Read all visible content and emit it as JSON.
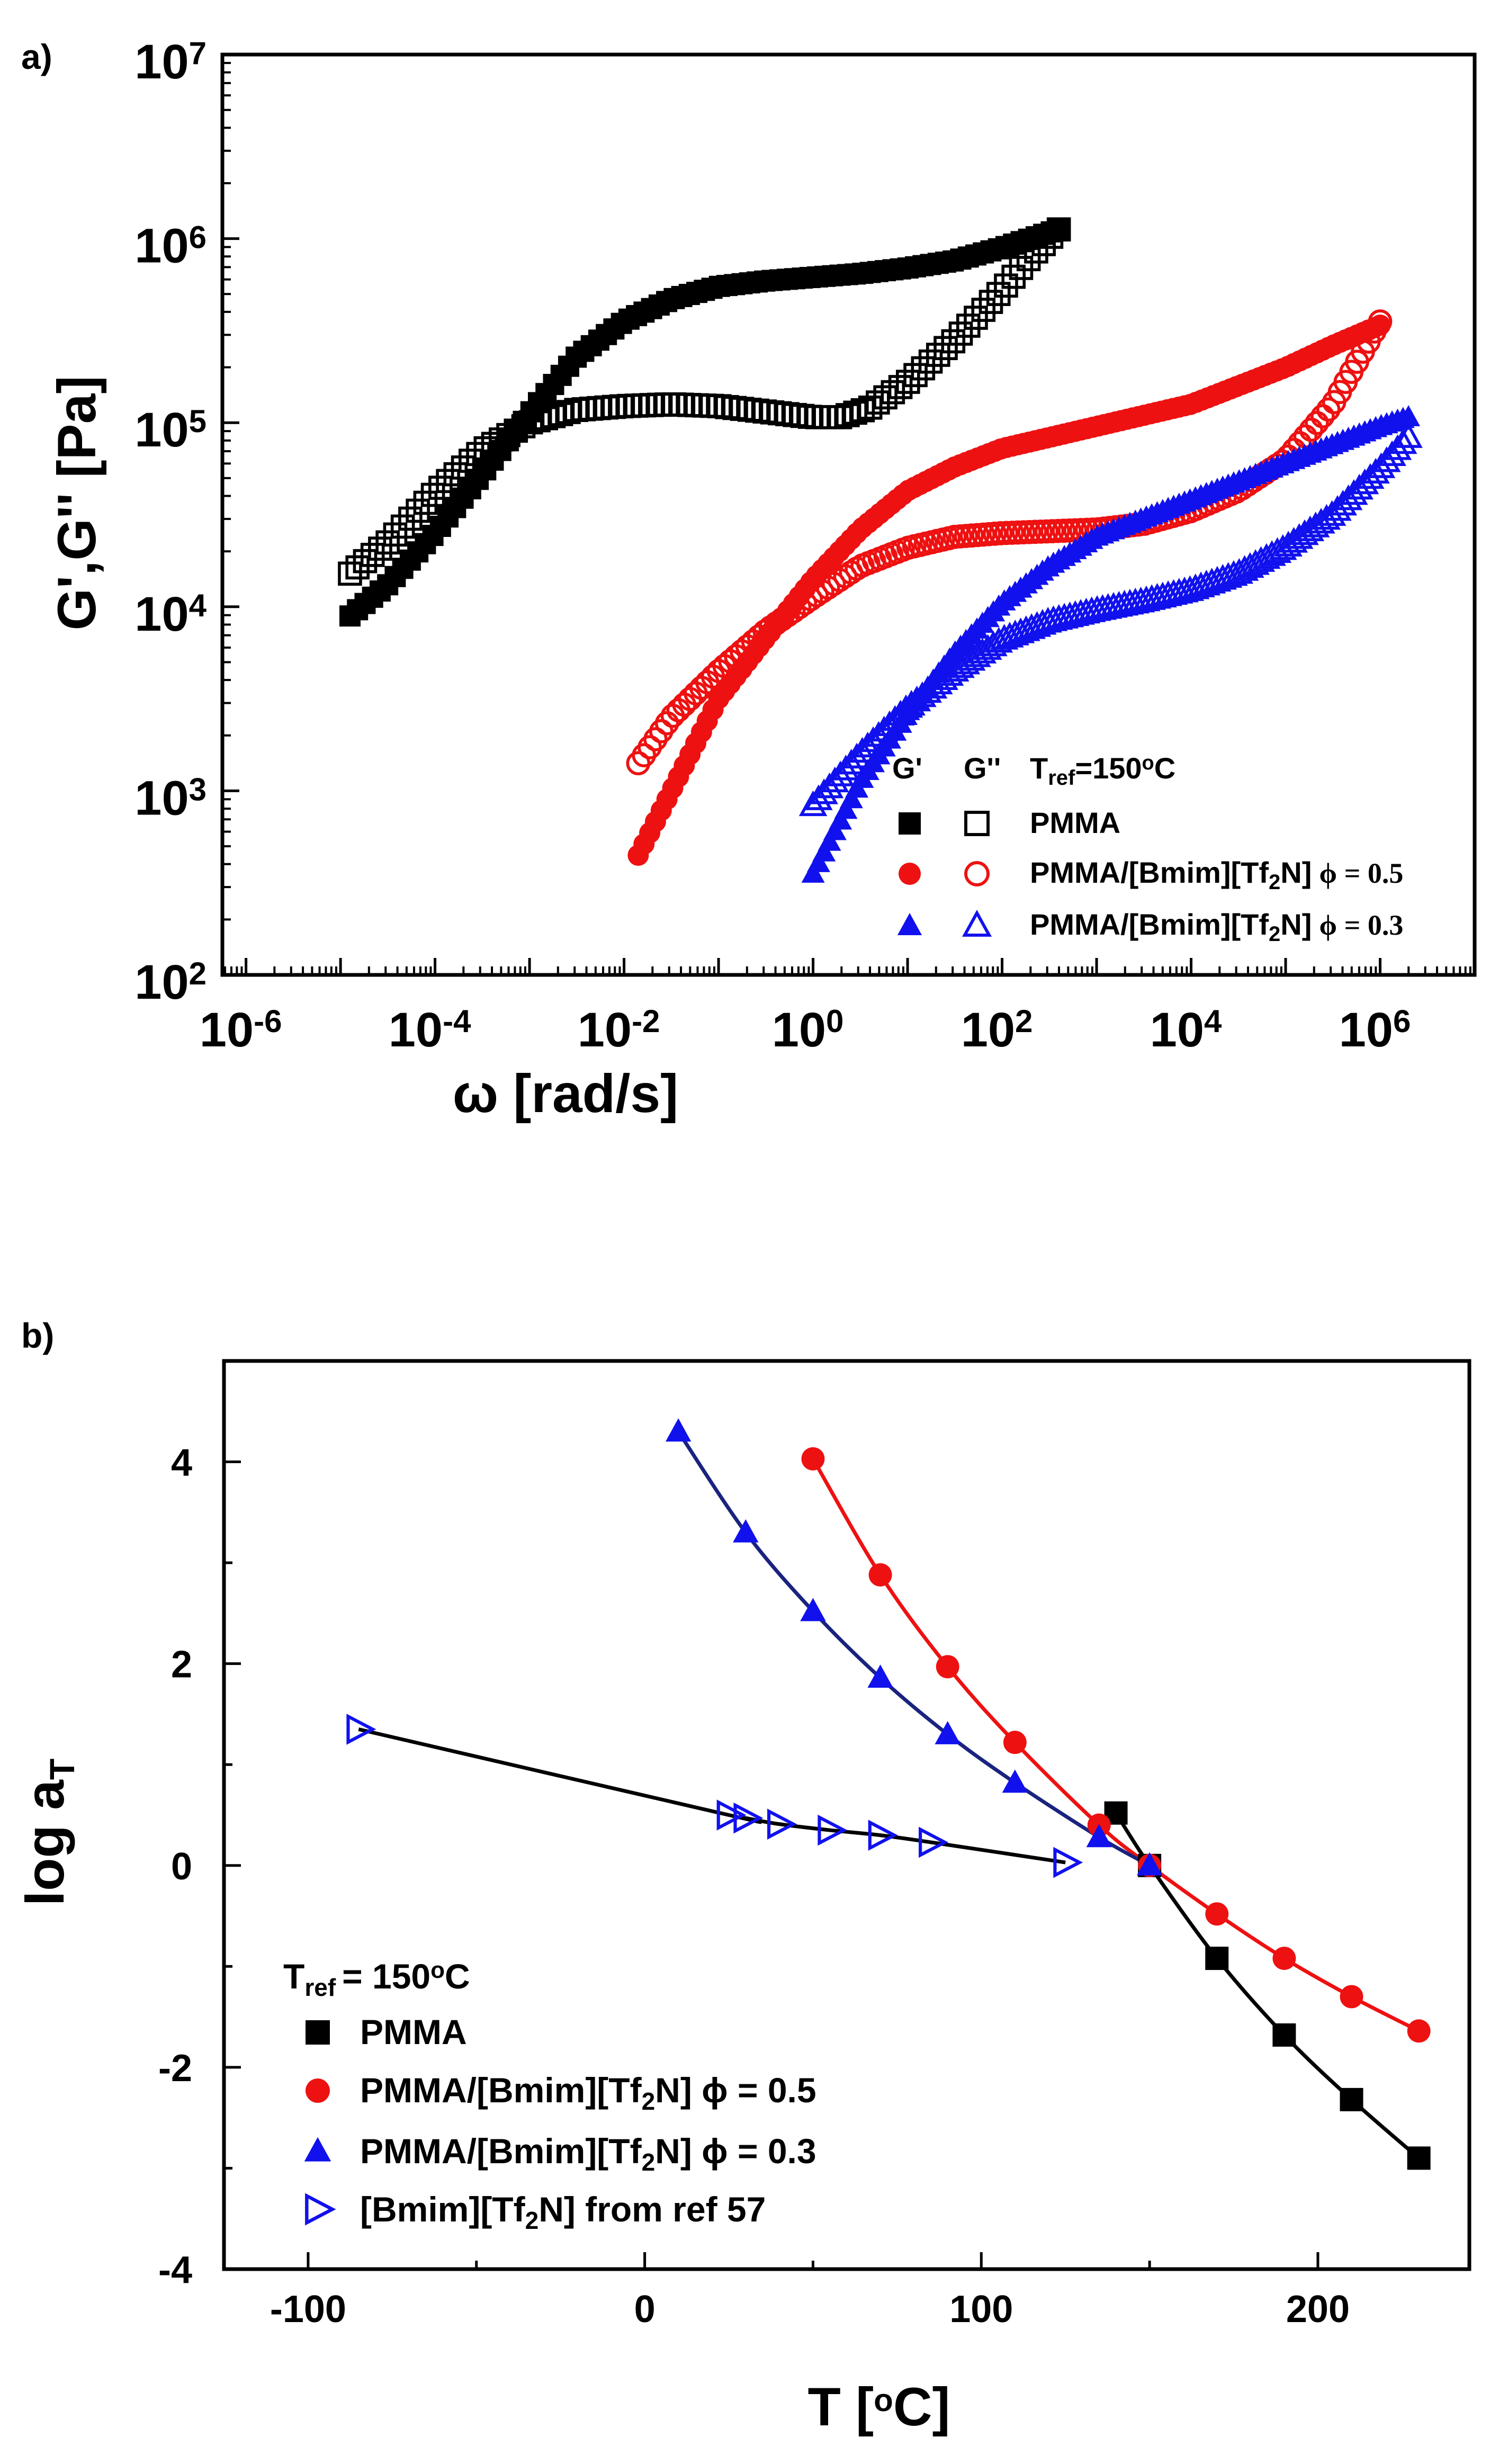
{
  "panels": [
    {
      "label": "a)",
      "xlabel": "ω [rad/s]",
      "ylabel": "G',G'' [Pa]",
      "legend_header": {
        "g1": "G'",
        "g2": "G''",
        "tref_label": "T",
        "tref_sub": "ref",
        "tref_value": "=150",
        "tref_sup": "o",
        "tref_unit": "C"
      },
      "x_tick_bases": [
        "10",
        "10",
        "10",
        "10",
        "10",
        "10",
        "10"
      ],
      "x_tick_exps": [
        "-6",
        "-4",
        "-2",
        "0",
        "2",
        "4",
        "6"
      ],
      "y_tick_bases": [
        "10",
        "10",
        "10",
        "10",
        "10",
        "10"
      ],
      "y_tick_exps": [
        "2",
        "3",
        "4",
        "5",
        "6",
        "7"
      ],
      "legend": [
        {
          "name_pre": "PMMA",
          "name_sub": "",
          "name_post": "",
          "phi": ""
        },
        {
          "name_pre": "PMMA/[Bmim][Tf",
          "name_sub": "2",
          "name_post": "N]",
          "phi": "ϕ = 0.5"
        },
        {
          "name_pre": "PMMA/[Bmim][Tf",
          "name_sub": "2",
          "name_post": "N]",
          "phi": "ϕ = 0.3"
        }
      ]
    },
    {
      "label": "b)",
      "xlabel_pre": "T [",
      "xlabel_sup": "o",
      "xlabel_post": "C]",
      "ylabel_pre": "log a",
      "ylabel_sub": "T",
      "x_ticks": [
        "-100",
        "0",
        "100",
        "200"
      ],
      "y_ticks": [
        "4",
        "2",
        "0",
        "-2",
        "-4"
      ],
      "legend_header": {
        "pre": "T",
        "sub": "ref",
        "mid": "= 150",
        "sup": "o",
        "post": "C"
      },
      "legend": [
        {
          "name_pre": "PMMA",
          "name_sub": "",
          "name_post": ""
        },
        {
          "name_pre": "PMMA/[Bmim][Tf",
          "name_sub": "2",
          "name_post": "N] ϕ = 0.5"
        },
        {
          "name_pre": "PMMA/[Bmim][Tf",
          "name_sub": "2",
          "name_post": "N] ϕ = 0.3"
        },
        {
          "name_pre": "[Bmim][Tf",
          "name_sub": "2",
          "name_post": "N] from ref 57"
        }
      ]
    }
  ],
  "colors": {
    "pmma": "#000000",
    "phi05": "#ee1111",
    "phi03": "#1111ee",
    "il": "#1111ee",
    "line_phi03": "#1a237e"
  },
  "chart_data": [
    {
      "type": "scatter",
      "title": "a)",
      "xlabel": "ω [rad/s]",
      "ylabel": "G',G'' [Pa]",
      "xscale": "log",
      "yscale": "log",
      "xlim_log10": [
        -6.25,
        7.0
      ],
      "ylim_log10": [
        2,
        7
      ],
      "series_params": [
        {
          "name": "PMMA G'",
          "marker": "square",
          "filled": true,
          "color": "#000000",
          "logx_range": [
            -4.9,
            2.6
          ],
          "count": 95,
          "anchors": [
            [
              -4.9,
              3.95
            ],
            [
              -4.5,
              4.12
            ],
            [
              -4.0,
              4.4
            ],
            [
              -3.5,
              4.72
            ],
            [
              -3.0,
              5.05
            ],
            [
              -2.5,
              5.36
            ],
            [
              -2.0,
              5.55
            ],
            [
              -1.5,
              5.67
            ],
            [
              -1.0,
              5.74
            ],
            [
              -0.5,
              5.77
            ],
            [
              0.0,
              5.79
            ],
            [
              0.5,
              5.81
            ],
            [
              1.0,
              5.84
            ],
            [
              1.5,
              5.88
            ],
            [
              2.0,
              5.95
            ],
            [
              2.6,
              6.05
            ]
          ]
        },
        {
          "name": "PMMA G''",
          "marker": "square",
          "filled": false,
          "color": "#000000",
          "logx_range": [
            -4.9,
            2.6
          ],
          "count": 95,
          "anchors": [
            [
              -4.9,
              4.18
            ],
            [
              -4.5,
              4.35
            ],
            [
              -4.0,
              4.62
            ],
            [
              -3.5,
              4.85
            ],
            [
              -3.0,
              5.0
            ],
            [
              -2.5,
              5.07
            ],
            [
              -2.0,
              5.09
            ],
            [
              -1.5,
              5.1
            ],
            [
              -1.0,
              5.09
            ],
            [
              -0.5,
              5.06
            ],
            [
              0.0,
              5.03
            ],
            [
              0.3,
              5.03
            ],
            [
              0.6,
              5.08
            ],
            [
              1.0,
              5.22
            ],
            [
              1.5,
              5.45
            ],
            [
              2.0,
              5.72
            ],
            [
              2.3,
              5.9
            ],
            [
              2.6,
              6.05
            ]
          ]
        },
        {
          "name": "PMMA/[Bmim][Tf2N] ϕ = 0.5 G'",
          "marker": "circle",
          "filled": true,
          "color": "#ee1111",
          "logx_range": [
            -1.85,
            6.0
          ],
          "count": 130,
          "anchors": [
            [
              -1.85,
              2.65
            ],
            [
              -1.6,
              2.9
            ],
            [
              -1.3,
              3.2
            ],
            [
              -1.0,
              3.5
            ],
            [
              -0.5,
              3.83
            ],
            [
              0.0,
              4.15
            ],
            [
              0.5,
              4.42
            ],
            [
              1.0,
              4.63
            ],
            [
              1.5,
              4.76
            ],
            [
              2.0,
              4.86
            ],
            [
              2.5,
              4.92
            ],
            [
              3.0,
              4.98
            ],
            [
              3.5,
              5.04
            ],
            [
              4.0,
              5.1
            ],
            [
              4.5,
              5.2
            ],
            [
              5.0,
              5.3
            ],
            [
              5.5,
              5.42
            ],
            [
              6.0,
              5.53
            ]
          ]
        },
        {
          "name": "PMMA/[Bmim][Tf2N] ϕ = 0.5 G''",
          "marker": "circle",
          "filled": false,
          "color": "#ee1111",
          "logx_range": [
            -1.85,
            6.0
          ],
          "count": 130,
          "anchors": [
            [
              -1.85,
              3.15
            ],
            [
              -1.5,
              3.4
            ],
            [
              -1.0,
              3.65
            ],
            [
              -0.5,
              3.87
            ],
            [
              0.0,
              4.05
            ],
            [
              0.5,
              4.22
            ],
            [
              1.0,
              4.32
            ],
            [
              1.5,
              4.38
            ],
            [
              2.0,
              4.4
            ],
            [
              3.0,
              4.42
            ],
            [
              3.5,
              4.45
            ],
            [
              4.0,
              4.52
            ],
            [
              4.5,
              4.63
            ],
            [
              5.0,
              4.8
            ],
            [
              5.5,
              5.1
            ],
            [
              6.0,
              5.55
            ]
          ]
        },
        {
          "name": "PMMA/[Bmim][Tf2N] ϕ = 0.3 G'",
          "marker": "triangle",
          "filled": true,
          "color": "#1111ee",
          "logx_range": [
            0.0,
            6.3
          ],
          "count": 110,
          "anchors": [
            [
              0.0,
              2.55
            ],
            [
              0.2,
              2.75
            ],
            [
              0.5,
              3.05
            ],
            [
              1.0,
              3.42
            ],
            [
              1.5,
              3.75
            ],
            [
              2.0,
              4.02
            ],
            [
              2.5,
              4.22
            ],
            [
              3.0,
              4.38
            ],
            [
              3.5,
              4.48
            ],
            [
              4.0,
              4.58
            ],
            [
              4.5,
              4.68
            ],
            [
              5.0,
              4.78
            ],
            [
              5.5,
              4.88
            ],
            [
              6.0,
              4.98
            ],
            [
              6.3,
              5.03
            ]
          ]
        },
        {
          "name": "PMMA/[Bmim][Tf2N] ϕ = 0.3 G''",
          "marker": "triangle",
          "filled": false,
          "color": "#1111ee",
          "logx_range": [
            0.0,
            6.3
          ],
          "count": 110,
          "anchors": [
            [
              0.0,
              2.92
            ],
            [
              0.5,
              3.2
            ],
            [
              1.0,
              3.45
            ],
            [
              1.5,
              3.65
            ],
            [
              2.0,
              3.82
            ],
            [
              2.5,
              3.92
            ],
            [
              3.0,
              3.98
            ],
            [
              3.5,
              4.03
            ],
            [
              4.0,
              4.09
            ],
            [
              4.5,
              4.18
            ],
            [
              5.0,
              4.32
            ],
            [
              5.5,
              4.5
            ],
            [
              6.0,
              4.75
            ],
            [
              6.3,
              4.92
            ]
          ]
        }
      ]
    },
    {
      "type": "line",
      "title": "b)",
      "xlabel": "T [oC]",
      "ylabel": "log aT",
      "xlim": [
        -125,
        245
      ],
      "ylim": [
        -4,
        5
      ],
      "series": [
        {
          "name": "PMMA",
          "marker": "square",
          "filled": true,
          "color": "#000000",
          "x": [
            140,
            150,
            170,
            190,
            210,
            230
          ],
          "y": [
            0.52,
            0.0,
            -0.92,
            -1.68,
            -2.32,
            -2.9
          ]
        },
        {
          "name": "PMMA/[Bmim][Tf2N] ϕ = 0.5",
          "marker": "circle",
          "filled": true,
          "color": "#ee1111",
          "x": [
            50,
            70,
            90,
            110,
            135,
            150,
            170,
            190,
            210,
            230
          ],
          "y": [
            4.03,
            2.88,
            1.97,
            1.22,
            0.4,
            0.0,
            -0.48,
            -0.92,
            -1.3,
            -1.64
          ]
        },
        {
          "name": "PMMA/[Bmim][Tf2N] ϕ = 0.3",
          "marker": "triangle",
          "filled": true,
          "color": "#1111ee",
          "x": [
            10,
            30,
            50,
            70,
            90,
            110,
            135,
            150
          ],
          "y": [
            4.3,
            3.3,
            2.52,
            1.86,
            1.3,
            0.82,
            0.28,
            0.0
          ]
        },
        {
          "name": "[Bmim][Tf2N] from ref 57",
          "marker": "triangle-right",
          "filled": false,
          "color": "#1111ee",
          "x": [
            -85,
            25,
            30,
            40,
            55,
            70,
            85,
            125
          ],
          "y": [
            1.35,
            0.5,
            0.47,
            0.41,
            0.35,
            0.3,
            0.23,
            0.03
          ]
        }
      ]
    }
  ]
}
